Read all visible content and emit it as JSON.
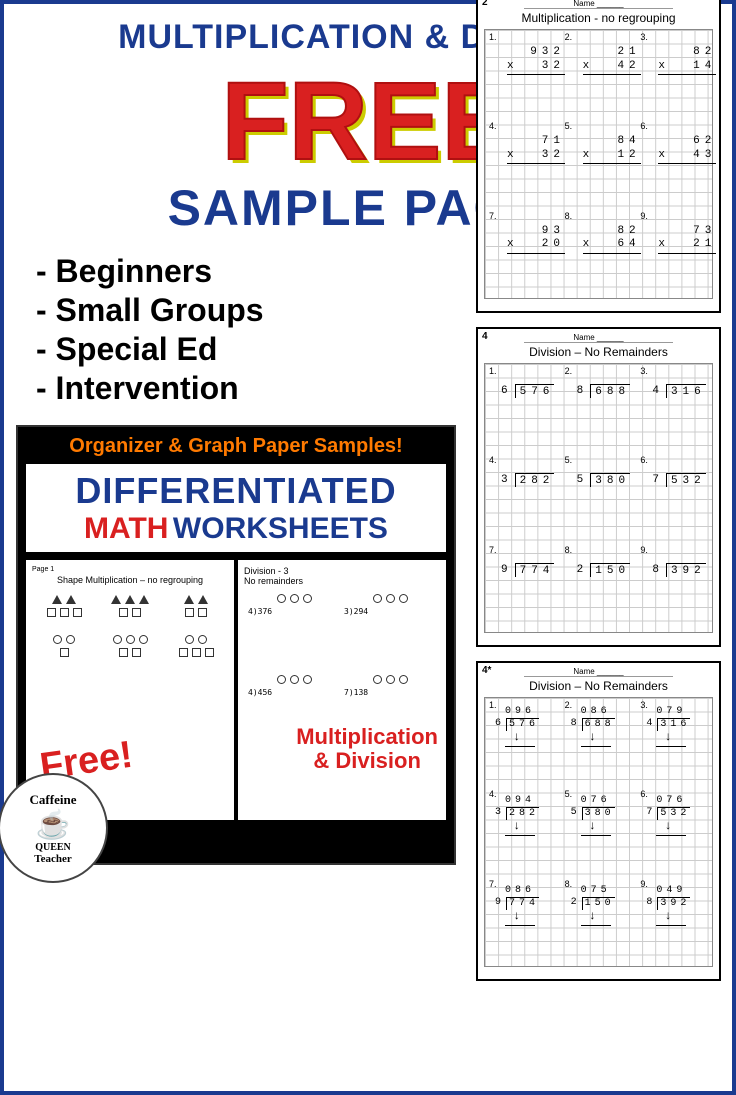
{
  "header": {
    "title": "MULTIPLICATION & DIVISION",
    "free": "FREE",
    "sample": "SAMPLE PACK!",
    "title_color": "#1a3a8f",
    "free_color": "#d92020",
    "free_shadow": "#cccc00"
  },
  "bullets": [
    "Beginners",
    "Small Groups",
    "Special Ed",
    "Intervention"
  ],
  "promo": {
    "top": "Organizer & Graph Paper Samples!",
    "line1": "DIFFERENTIATED",
    "line2a": "MATH",
    "line2b": "WORKSHEETS",
    "free_label": "Free!",
    "muldiv": "Multiplication\n& Division",
    "sheet1_title": "Shape Multiplication – no regrouping",
    "sheet2_title": "Division - 3\nNo remainders",
    "colors": {
      "top": "#ff7a00",
      "diff": "#1a3a8f",
      "math": "#d92020"
    }
  },
  "logo": {
    "line1": "Caffeine",
    "line2": "QUEEN",
    "line3": "Teacher"
  },
  "worksheets": [
    {
      "page_num": "2",
      "name_label": "Name ______",
      "title": "Multiplication - no regrouping",
      "type": "mult",
      "problems": [
        {
          "n": "1.",
          "a": "  932",
          "b": "x  32"
        },
        {
          "n": "2.",
          "a": "   21",
          "b": "x  42"
        },
        {
          "n": "3.",
          "a": "   82",
          "b": "x  14"
        },
        {
          "n": "4.",
          "a": "   71",
          "b": "x  32"
        },
        {
          "n": "5.",
          "a": "   84",
          "b": "x  12"
        },
        {
          "n": "6.",
          "a": "   62",
          "b": "x  43"
        },
        {
          "n": "7.",
          "a": "   93",
          "b": "x  20"
        },
        {
          "n": "8.",
          "a": "   82",
          "b": "x  64"
        },
        {
          "n": "9.",
          "a": "   73",
          "b": "x  21"
        }
      ]
    },
    {
      "page_num": "4",
      "name_label": "Name ______",
      "title": "Division – No Remainders",
      "type": "div",
      "problems": [
        {
          "n": "1.",
          "d": "6",
          "dd": "576"
        },
        {
          "n": "2.",
          "d": "8",
          "dd": "688"
        },
        {
          "n": "3.",
          "d": "4",
          "dd": "316"
        },
        {
          "n": "4.",
          "d": "3",
          "dd": "282"
        },
        {
          "n": "5.",
          "d": "5",
          "dd": "380"
        },
        {
          "n": "6.",
          "d": "7",
          "dd": "532"
        },
        {
          "n": "7.",
          "d": "9",
          "dd": "774"
        },
        {
          "n": "8.",
          "d": "2",
          "dd": "150"
        },
        {
          "n": "9.",
          "d": "8",
          "dd": "392"
        }
      ]
    },
    {
      "page_num": "4*",
      "name_label": "Name ______",
      "title": "Division – No Remainders",
      "type": "longdiv",
      "problems": [
        {
          "n": "1.",
          "q": "096",
          "d": "6",
          "dd": "576"
        },
        {
          "n": "2.",
          "q": "086",
          "d": "8",
          "dd": "688"
        },
        {
          "n": "3.",
          "q": "079",
          "d": "4",
          "dd": "316"
        },
        {
          "n": "4.",
          "q": "094",
          "d": "3",
          "dd": "282"
        },
        {
          "n": "5.",
          "q": "076",
          "d": "5",
          "dd": "380"
        },
        {
          "n": "6.",
          "q": "076",
          "d": "7",
          "dd": "532"
        },
        {
          "n": "7.",
          "q": "086",
          "d": "9",
          "dd": "774"
        },
        {
          "n": "8.",
          "q": "075",
          "d": "2",
          "dd": "150"
        },
        {
          "n": "9.",
          "q": "049",
          "d": "8",
          "dd": "392"
        }
      ]
    }
  ]
}
